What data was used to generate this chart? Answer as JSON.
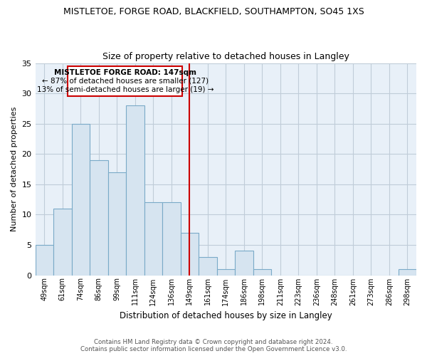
{
  "title": "MISTLETOE, FORGE ROAD, BLACKFIELD, SOUTHAMPTON, SO45 1XS",
  "subtitle": "Size of property relative to detached houses in Langley",
  "xlabel": "Distribution of detached houses by size in Langley",
  "ylabel": "Number of detached properties",
  "bar_color": "#d6e4f0",
  "bar_edge_color": "#7aaac8",
  "plot_bg_color": "#e8f0f8",
  "categories": [
    "49sqm",
    "61sqm",
    "74sqm",
    "86sqm",
    "99sqm",
    "111sqm",
    "124sqm",
    "136sqm",
    "149sqm",
    "161sqm",
    "174sqm",
    "186sqm",
    "198sqm",
    "211sqm",
    "223sqm",
    "236sqm",
    "248sqm",
    "261sqm",
    "273sqm",
    "286sqm",
    "298sqm"
  ],
  "values": [
    5,
    11,
    25,
    19,
    17,
    28,
    12,
    12,
    7,
    3,
    1,
    4,
    1,
    0,
    0,
    0,
    0,
    0,
    0,
    0,
    1
  ],
  "vline_index": 8,
  "vline_color": "#cc0000",
  "annotation_title": "MISTLETOE FORGE ROAD: 147sqm",
  "annotation_line1": "← 87% of detached houses are smaller (127)",
  "annotation_line2": "13% of semi-detached houses are larger (19) →",
  "annotation_box_color": "#ffffff",
  "annotation_box_edge": "#cc0000",
  "ylim": [
    0,
    35
  ],
  "yticks": [
    0,
    5,
    10,
    15,
    20,
    25,
    30,
    35
  ],
  "footer1": "Contains HM Land Registry data © Crown copyright and database right 2024.",
  "footer2": "Contains public sector information licensed under the Open Government Licence v3.0.",
  "background_color": "#ffffff",
  "grid_color": "#c0ccd8"
}
